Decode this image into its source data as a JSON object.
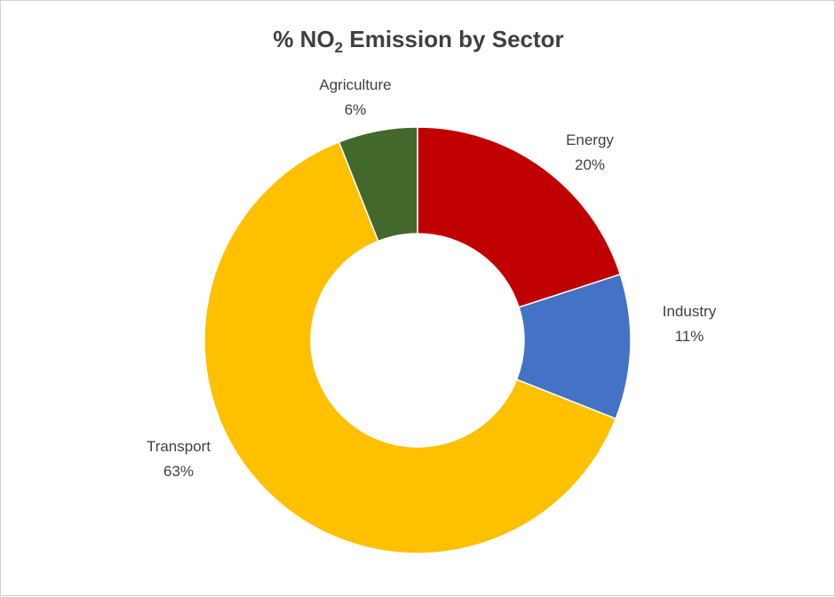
{
  "chart_data": {
    "type": "pie",
    "variant": "donut",
    "title_main": "% NO",
    "title_sub": "2",
    "title_rest": " Emission by Sector",
    "legend": "none",
    "slices": [
      {
        "name": "Energy",
        "value": 20,
        "label": "20%",
        "color": "#C00000"
      },
      {
        "name": "Industry",
        "value": 11,
        "label": "11%",
        "color": "#4472C4"
      },
      {
        "name": "Transport",
        "value": 63,
        "label": "63%",
        "color": "#FFC000"
      },
      {
        "name": "Agriculture",
        "value": 6,
        "label": "6%",
        "color": "#43682B"
      }
    ]
  }
}
